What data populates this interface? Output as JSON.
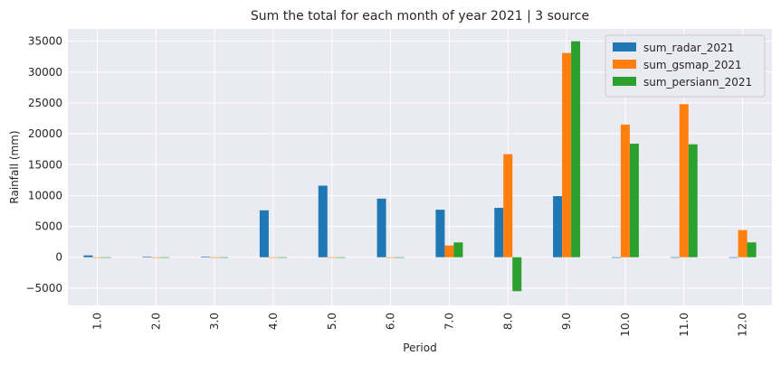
{
  "chart_data": {
    "type": "bar",
    "title": "Sum the total for each month of year 2021 | 3 source",
    "xlabel": "Period",
    "ylabel": "Rainfall (mm)",
    "categories": [
      "1.0",
      "2.0",
      "3.0",
      "4.0",
      "5.0",
      "6.0",
      "7.0",
      "8.0",
      "9.0",
      "10.0",
      "11.0",
      "12.0"
    ],
    "ylim": [
      -7800,
      37000
    ],
    "yticks": [
      -5000,
      0,
      5000,
      10000,
      15000,
      20000,
      25000,
      30000,
      35000
    ],
    "ytick_labels": [
      "−5000",
      "0",
      "5000",
      "10000",
      "15000",
      "20000",
      "25000",
      "30000",
      "35000"
    ],
    "grid": true,
    "legend_position": "top-right",
    "series": [
      {
        "name": "sum_radar_2021",
        "color": "#1f77b4",
        "values": [
          300,
          100,
          100,
          7600,
          11600,
          9500,
          7700,
          8000,
          9900,
          0,
          0,
          0
        ]
      },
      {
        "name": "sum_gsmap_2021",
        "color": "#ff7f0e",
        "values": [
          0,
          0,
          0,
          0,
          0,
          0,
          1900,
          16700,
          33100,
          21500,
          24800,
          4400
        ]
      },
      {
        "name": "sum_persiann_2021",
        "color": "#2ca02c",
        "values": [
          0,
          0,
          0,
          0,
          0,
          0,
          2400,
          -5500,
          35000,
          18400,
          18300,
          2400
        ]
      }
    ]
  }
}
